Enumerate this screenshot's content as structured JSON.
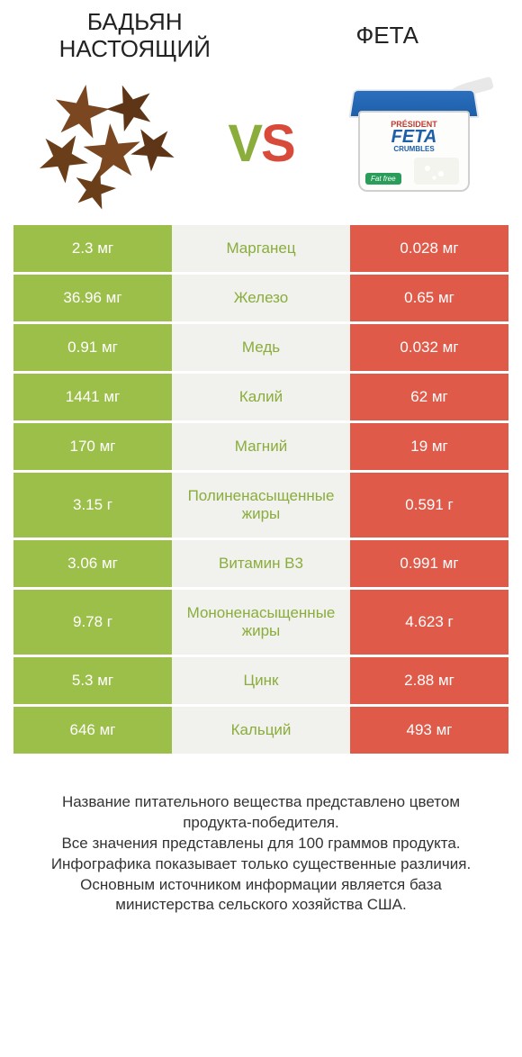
{
  "header": {
    "left_title": "БАДЬЯН НАСТОЯЩИЙ",
    "right_title": "ФЕТА",
    "vs_v": "V",
    "vs_s": "S"
  },
  "feta_labels": {
    "brand": "PRÉSIDENT",
    "name": "FETA",
    "sub": "CRUMBLES",
    "badge": "Fat free"
  },
  "colors": {
    "green": "#9cbf4a",
    "green_mid": "#8aad3b",
    "red": "#e05a4a",
    "red_mid": "#d84b3a",
    "neutral_bg": "#f1f1ee"
  },
  "table": {
    "left_bg": "#9cbf4a",
    "right_bg": "#e05a4a",
    "rows": [
      {
        "left": "2.3 мг",
        "label": "Марганец",
        "right": "0.028 мг",
        "mid_color": "green",
        "tall": false
      },
      {
        "left": "36.96 мг",
        "label": "Железо",
        "right": "0.65 мг",
        "mid_color": "green",
        "tall": false
      },
      {
        "left": "0.91 мг",
        "label": "Медь",
        "right": "0.032 мг",
        "mid_color": "green",
        "tall": false
      },
      {
        "left": "1441 мг",
        "label": "Калий",
        "right": "62 мг",
        "mid_color": "green",
        "tall": false
      },
      {
        "left": "170 мг",
        "label": "Магний",
        "right": "19 мг",
        "mid_color": "green",
        "tall": false
      },
      {
        "left": "3.15 г",
        "label": "Полиненасыщенные жиры",
        "right": "0.591 г",
        "mid_color": "green",
        "tall": true
      },
      {
        "left": "3.06 мг",
        "label": "Витамин B3",
        "right": "0.991 мг",
        "mid_color": "green",
        "tall": false
      },
      {
        "left": "9.78 г",
        "label": "Мононенасыщенные жиры",
        "right": "4.623 г",
        "mid_color": "green",
        "tall": true
      },
      {
        "left": "5.3 мг",
        "label": "Цинк",
        "right": "2.88 мг",
        "mid_color": "green",
        "tall": false
      },
      {
        "left": "646 мг",
        "label": "Кальций",
        "right": "493 мг",
        "mid_color": "green",
        "tall": false
      }
    ]
  },
  "footer": {
    "line1": "Название питательного вещества представлено цветом продукта-победителя.",
    "line2": "Все значения представлены для 100 граммов продукта.",
    "line3": "Инфографика показывает только существенные различия.",
    "line4": "Основным источником информации является база министерства сельского хозяйства США."
  }
}
